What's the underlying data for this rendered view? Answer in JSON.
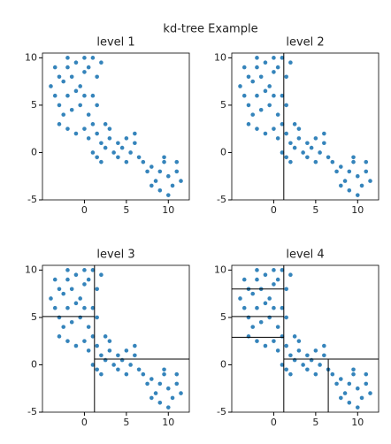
{
  "figure": {
    "title": "kd-tree Example"
  },
  "chart_data": [
    {
      "type": "scatter",
      "title": "level 1",
      "color": "#1f77b4",
      "x": [
        -3,
        -2.5,
        -2,
        -1.5,
        -1,
        -0.5,
        0,
        0.5,
        1,
        1.5,
        2,
        -3.5,
        -3,
        -2,
        -1,
        0,
        1,
        1.5,
        -2.5,
        -1.5,
        -0.5,
        0.5,
        1,
        -3,
        -2,
        -1,
        0,
        0.5,
        1.5,
        2,
        2.5,
        3,
        1,
        1.5,
        2,
        3.5,
        4,
        4.5,
        5,
        5.5,
        6,
        6.5,
        5,
        4,
        6,
        7,
        7.5,
        8,
        8.5,
        9,
        9.5,
        10,
        10.5,
        11,
        11.5,
        9,
        10,
        8,
        9.5,
        11,
        -3.5,
        -2,
        0,
        -4,
        2.5,
        3
      ],
      "values": [
        8,
        7.5,
        9,
        8,
        9.5,
        7,
        8.5,
        9,
        10,
        8,
        9.5,
        6,
        5,
        6,
        6.5,
        6,
        6,
        5,
        4,
        4.5,
        5,
        4,
        3,
        3,
        2.5,
        2,
        2.5,
        1.5,
        2,
        1,
        0.5,
        1.5,
        0,
        -0.5,
        -1,
        0,
        1,
        0.5,
        1.5,
        0,
        1,
        -0.5,
        -1,
        -0.5,
        2,
        -1,
        -2,
        -1.5,
        -3,
        -2,
        -1,
        -2.5,
        -3.5,
        -2,
        -3,
        -4,
        -4.5,
        -3.5,
        -0.5,
        -1,
        9,
        10,
        10,
        7,
        3,
        2.5
      ],
      "xlim": [
        -5,
        12.5
      ],
      "ylim": [
        -5,
        10.5
      ],
      "xticks": [
        0,
        5,
        10
      ],
      "yticks": [
        -5,
        0,
        5,
        10
      ],
      "splits": []
    },
    {
      "type": "scatter",
      "title": "level 2",
      "color": "#1f77b4",
      "x": [
        -3,
        -2.5,
        -2,
        -1.5,
        -1,
        -0.5,
        0,
        0.5,
        1,
        1.5,
        2,
        -3.5,
        -3,
        -2,
        -1,
        0,
        1,
        1.5,
        -2.5,
        -1.5,
        -0.5,
        0.5,
        1,
        -3,
        -2,
        -1,
        0,
        0.5,
        1.5,
        2,
        2.5,
        3,
        1,
        1.5,
        2,
        3.5,
        4,
        4.5,
        5,
        5.5,
        6,
        6.5,
        5,
        4,
        6,
        7,
        7.5,
        8,
        8.5,
        9,
        9.5,
        10,
        10.5,
        11,
        11.5,
        9,
        10,
        8,
        9.5,
        11,
        -3.5,
        -2,
        0,
        -4,
        2.5,
        3
      ],
      "values": [
        8,
        7.5,
        9,
        8,
        9.5,
        7,
        8.5,
        9,
        10,
        8,
        9.5,
        6,
        5,
        6,
        6.5,
        6,
        6,
        5,
        4,
        4.5,
        5,
        4,
        3,
        3,
        2.5,
        2,
        2.5,
        1.5,
        2,
        1,
        0.5,
        1.5,
        0,
        -0.5,
        -1,
        0,
        1,
        0.5,
        1.5,
        0,
        1,
        -0.5,
        -1,
        -0.5,
        2,
        -1,
        -2,
        -1.5,
        -3,
        -2,
        -1,
        -2.5,
        -3.5,
        -2,
        -3,
        -4,
        -4.5,
        -3.5,
        -0.5,
        -1,
        9,
        10,
        10,
        7,
        3,
        2.5
      ],
      "xlim": [
        -5,
        12.5
      ],
      "ylim": [
        -5,
        10.5
      ],
      "xticks": [
        0,
        5,
        10
      ],
      "yticks": [
        -5,
        0,
        5,
        10
      ],
      "splits": [
        [
          1.2,
          -5,
          1.2,
          10.5
        ]
      ]
    },
    {
      "type": "scatter",
      "title": "level 3",
      "color": "#1f77b4",
      "x": [
        -3,
        -2.5,
        -2,
        -1.5,
        -1,
        -0.5,
        0,
        0.5,
        1,
        1.5,
        2,
        -3.5,
        -3,
        -2,
        -1,
        0,
        1,
        1.5,
        -2.5,
        -1.5,
        -0.5,
        0.5,
        1,
        -3,
        -2,
        -1,
        0,
        0.5,
        1.5,
        2,
        2.5,
        3,
        1,
        1.5,
        2,
        3.5,
        4,
        4.5,
        5,
        5.5,
        6,
        6.5,
        5,
        4,
        6,
        7,
        7.5,
        8,
        8.5,
        9,
        9.5,
        10,
        10.5,
        11,
        11.5,
        9,
        10,
        8,
        9.5,
        11,
        -3.5,
        -2,
        0,
        -4,
        2.5,
        3
      ],
      "values": [
        8,
        7.5,
        9,
        8,
        9.5,
        7,
        8.5,
        9,
        10,
        8,
        9.5,
        6,
        5,
        6,
        6.5,
        6,
        6,
        5,
        4,
        4.5,
        5,
        4,
        3,
        3,
        2.5,
        2,
        2.5,
        1.5,
        2,
        1,
        0.5,
        1.5,
        0,
        -0.5,
        -1,
        0,
        1,
        0.5,
        1.5,
        0,
        1,
        -0.5,
        -1,
        -0.5,
        2,
        -1,
        -2,
        -1.5,
        -3,
        -2,
        -1,
        -2.5,
        -3.5,
        -2,
        -3,
        -4,
        -4.5,
        -3.5,
        -0.5,
        -1,
        9,
        10,
        10,
        7,
        3,
        2.5
      ],
      "xlim": [
        -5,
        12.5
      ],
      "ylim": [
        -5,
        10.5
      ],
      "xticks": [
        0,
        5,
        10
      ],
      "yticks": [
        -5,
        0,
        5,
        10
      ],
      "splits": [
        [
          1.2,
          -5,
          1.2,
          10.5
        ],
        [
          -5,
          5.1,
          1.2,
          5.1
        ],
        [
          1.2,
          0.6,
          12.5,
          0.6
        ]
      ]
    },
    {
      "type": "scatter",
      "title": "level 4",
      "color": "#1f77b4",
      "x": [
        -3,
        -2.5,
        -2,
        -1.5,
        -1,
        -0.5,
        0,
        0.5,
        1,
        1.5,
        2,
        -3.5,
        -3,
        -2,
        -1,
        0,
        1,
        1.5,
        -2.5,
        -1.5,
        -0.5,
        0.5,
        1,
        -3,
        -2,
        -1,
        0,
        0.5,
        1.5,
        2,
        2.5,
        3,
        1,
        1.5,
        2,
        3.5,
        4,
        4.5,
        5,
        5.5,
        6,
        6.5,
        5,
        4,
        6,
        7,
        7.5,
        8,
        8.5,
        9,
        9.5,
        10,
        10.5,
        11,
        11.5,
        9,
        10,
        8,
        9.5,
        11,
        -3.5,
        -2,
        0,
        -4,
        2.5,
        3
      ],
      "values": [
        8,
        7.5,
        9,
        8,
        9.5,
        7,
        8.5,
        9,
        10,
        8,
        9.5,
        6,
        5,
        6,
        6.5,
        6,
        6,
        5,
        4,
        4.5,
        5,
        4,
        3,
        3,
        2.5,
        2,
        2.5,
        1.5,
        2,
        1,
        0.5,
        1.5,
        0,
        -0.5,
        -1,
        0,
        1,
        0.5,
        1.5,
        0,
        1,
        -0.5,
        -1,
        -0.5,
        2,
        -1,
        -2,
        -1.5,
        -3,
        -2,
        -1,
        -2.5,
        -3.5,
        -2,
        -3,
        -4,
        -4.5,
        -3.5,
        -0.5,
        -1,
        9,
        10,
        10,
        7,
        3,
        2.5
      ],
      "xlim": [
        -5,
        12.5
      ],
      "ylim": [
        -5,
        10.5
      ],
      "xticks": [
        0,
        5,
        10
      ],
      "yticks": [
        -5,
        0,
        5,
        10
      ],
      "splits": [
        [
          1.2,
          -5,
          1.2,
          10.5
        ],
        [
          -5,
          5.1,
          1.2,
          5.1
        ],
        [
          1.2,
          0.6,
          12.5,
          0.6
        ],
        [
          -5,
          8,
          1.2,
          8
        ],
        [
          -5,
          2.9,
          1.2,
          2.9
        ],
        [
          6.5,
          -5,
          6.5,
          0.6
        ]
      ]
    }
  ]
}
